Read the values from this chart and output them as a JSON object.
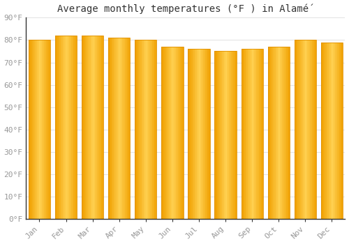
{
  "title": "Average monthly temperatures (°F ) in Alamé́",
  "months": [
    "Jan",
    "Feb",
    "Mar",
    "Apr",
    "May",
    "Jun",
    "Jul",
    "Aug",
    "Sep",
    "Oct",
    "Nov",
    "Dec"
  ],
  "values": [
    80,
    82,
    82,
    81,
    80,
    77,
    76,
    75,
    76,
    77,
    80,
    79
  ],
  "bar_color_center": "#FFD050",
  "bar_color_edge": "#F0A000",
  "background_color": "#FFFFFF",
  "grid_color": "#DDDDDD",
  "ylim": [
    0,
    90
  ],
  "yticks": [
    0,
    10,
    20,
    30,
    40,
    50,
    60,
    70,
    80,
    90
  ],
  "ytick_labels": [
    "0°F",
    "10°F",
    "20°F",
    "30°F",
    "40°F",
    "50°F",
    "60°F",
    "70°F",
    "80°F",
    "90°F"
  ],
  "title_fontsize": 10,
  "tick_fontsize": 8,
  "font_color": "#999999",
  "spine_color": "#333333"
}
